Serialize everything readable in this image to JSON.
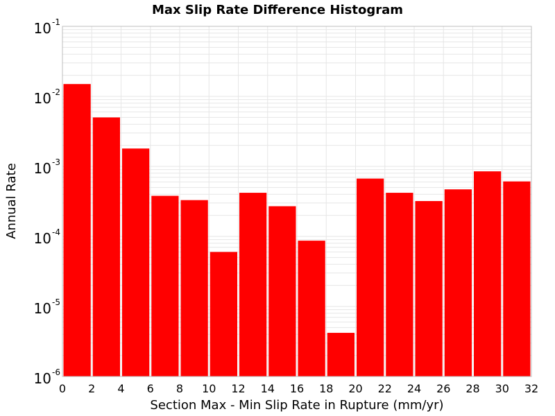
{
  "chart_data": {
    "type": "bar",
    "title": "Max Slip Rate Difference Histogram",
    "xlabel": "Section Max - Min Slip Rate in Rupture (mm/yr)",
    "ylabel": "Annual Rate",
    "y_scale": "log",
    "ylim": [
      1e-06,
      0.1
    ],
    "xlim": [
      0,
      32
    ],
    "bin_width": 2,
    "xticks": [
      "0",
      "2",
      "4",
      "6",
      "8",
      "10",
      "12",
      "14",
      "16",
      "18",
      "20",
      "22",
      "24",
      "26",
      "28",
      "30",
      "32"
    ],
    "yticks": [
      {
        "base": "10",
        "exp": "-1"
      },
      {
        "base": "10",
        "exp": "-2"
      },
      {
        "base": "10",
        "exp": "-3"
      },
      {
        "base": "10",
        "exp": "-4"
      },
      {
        "base": "10",
        "exp": "-5"
      },
      {
        "base": "10",
        "exp": "-6"
      }
    ],
    "bins": [
      {
        "x_start": 0,
        "x_end": 2,
        "value": 0.015
      },
      {
        "x_start": 2,
        "x_end": 4,
        "value": 0.005
      },
      {
        "x_start": 4,
        "x_end": 6,
        "value": 0.0018
      },
      {
        "x_start": 6,
        "x_end": 8,
        "value": 0.00038
      },
      {
        "x_start": 8,
        "x_end": 10,
        "value": 0.00033
      },
      {
        "x_start": 10,
        "x_end": 12,
        "value": 6e-05
      },
      {
        "x_start": 12,
        "x_end": 14,
        "value": 0.00042
      },
      {
        "x_start": 14,
        "x_end": 16,
        "value": 0.00027
      },
      {
        "x_start": 16,
        "x_end": 18,
        "value": 8.7e-05
      },
      {
        "x_start": 18,
        "x_end": 20,
        "value": 4.2e-06
      },
      {
        "x_start": 20,
        "x_end": 22,
        "value": 0.00067
      },
      {
        "x_start": 22,
        "x_end": 24,
        "value": 0.00042
      },
      {
        "x_start": 24,
        "x_end": 26,
        "value": 0.00032
      },
      {
        "x_start": 26,
        "x_end": 28,
        "value": 0.00047
      },
      {
        "x_start": 28,
        "x_end": 30,
        "value": 0.00085
      },
      {
        "x_start": 30,
        "x_end": 32,
        "value": 0.00061
      }
    ],
    "bar_color": "#ff0000",
    "grid": true,
    "grid_color": "#e6e6e6",
    "frame_color": "#bdbdbd",
    "background": "#ffffff"
  }
}
